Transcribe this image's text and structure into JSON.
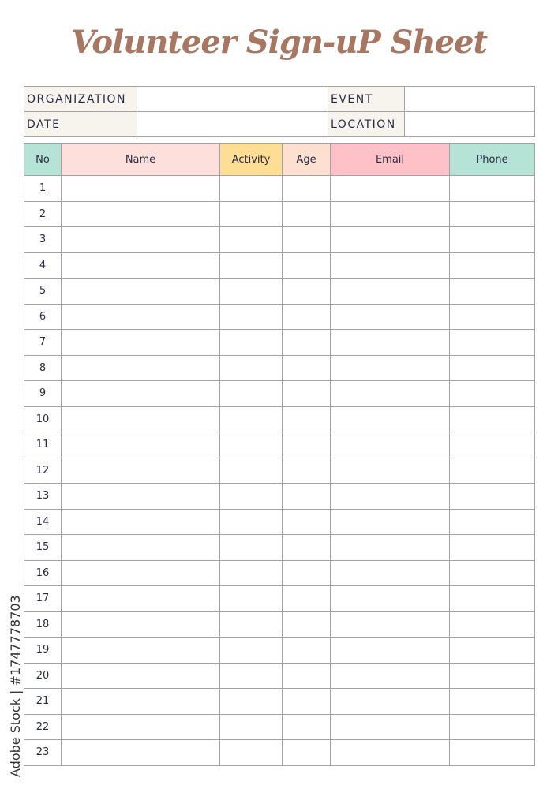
{
  "title": "Volunteer Sign-uP Sheet",
  "info": {
    "organization_label": "ORGANIZATION",
    "event_label": "EVENT",
    "date_label": "DATE",
    "location_label": "LOCATION"
  },
  "columns": [
    {
      "label": "No",
      "color": "#b5e3d5"
    },
    {
      "label": "Name",
      "color": "#fde0dc"
    },
    {
      "label": "Activity",
      "color": "#fedd95"
    },
    {
      "label": "Age",
      "color": "#fde0d0"
    },
    {
      "label": "Email",
      "color": "#fec1c7"
    },
    {
      "label": "Phone",
      "color": "#b5e3d5"
    }
  ],
  "rows": [
    "1",
    "2",
    "3",
    "4",
    "5",
    "6",
    "7",
    "8",
    "9",
    "10",
    "11",
    "12",
    "13",
    "14",
    "15",
    "16",
    "17",
    "18",
    "19",
    "20",
    "21",
    "22",
    "23"
  ],
  "watermark": "Adobe Stock | #1747778703",
  "colors": {
    "title": "#a87762",
    "label_bg": "#f7f4ee",
    "border": "#a3a3a3"
  }
}
